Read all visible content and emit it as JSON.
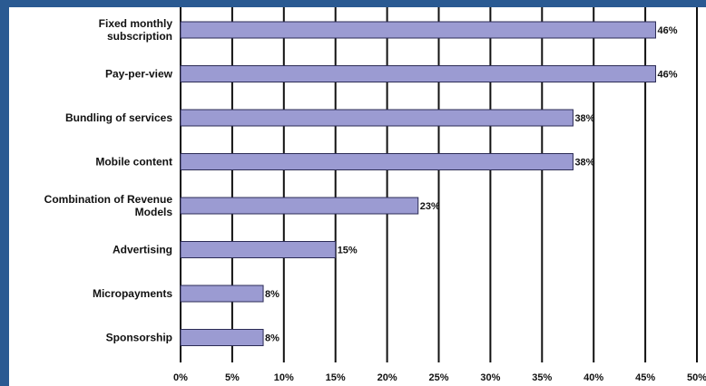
{
  "chart_data": {
    "type": "bar",
    "orientation": "horizontal",
    "categories": [
      "Fixed monthly subscription",
      "Pay-per-view",
      "Bundling of services",
      "Mobile content",
      "Combination of Revenue Models",
      "Advertising",
      "Micropayments",
      "Sponsorship"
    ],
    "category_lines": [
      [
        "Fixed monthly",
        "subscription"
      ],
      [
        "Pay-per-view"
      ],
      [
        "Bundling of services"
      ],
      [
        "Mobile content"
      ],
      [
        "Combination of Revenue",
        "Models"
      ],
      [
        "Advertising"
      ],
      [
        "Micropayments"
      ],
      [
        "Sponsorship"
      ]
    ],
    "values": [
      46,
      46,
      38,
      38,
      23,
      15,
      8,
      8
    ],
    "value_labels": [
      "46%",
      "46%",
      "38%",
      "38%",
      "23%",
      "15%",
      "8%",
      "8%"
    ],
    "xlim": [
      0,
      50
    ],
    "xticks": [
      0,
      5,
      10,
      15,
      20,
      25,
      30,
      35,
      40,
      45,
      50
    ],
    "xtick_labels": [
      "0%",
      "5%",
      "10%",
      "15%",
      "20%",
      "25%",
      "30%",
      "35%",
      "40%",
      "45%",
      "50%"
    ],
    "title": "",
    "xlabel": "",
    "ylabel": "",
    "grid": "vertical",
    "legend": "none",
    "colors": {
      "bar": "#9b9bd2",
      "bar_edge": "#2b2b55",
      "gridline": "#111111",
      "background": "#2a5a92"
    }
  }
}
